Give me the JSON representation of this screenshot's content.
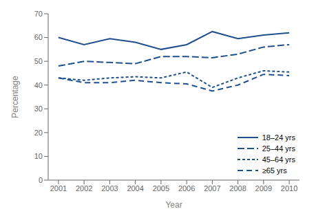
{
  "chart_data": {
    "type": "line",
    "xlabel": "Year",
    "ylabel": "Percentage",
    "x": [
      2001,
      2002,
      2003,
      2004,
      2005,
      2006,
      2007,
      2008,
      2009,
      2010
    ],
    "series": [
      {
        "name": "18–24 yrs",
        "color": "#1f4e8c",
        "line_style": "solid",
        "values": [
          60,
          57,
          59.5,
          58,
          55,
          57,
          62.5,
          59.5,
          61,
          62
        ]
      },
      {
        "name": "25–44 yrs",
        "color": "#1f4e8c",
        "line_style": "dashed",
        "values": [
          48,
          50,
          49.5,
          49,
          52,
          52,
          51.5,
          53,
          56,
          57
        ]
      },
      {
        "name": "45–64 yrs",
        "color": "#1f4e8c",
        "line_style": "dotted",
        "values": [
          43,
          42,
          43,
          43.5,
          43,
          45.5,
          39,
          43,
          46,
          45.5
        ]
      },
      {
        "name": "≥65 yrs",
        "color": "#1f4e8c",
        "line_style": "longdash",
        "values": [
          43,
          41,
          41,
          42,
          41,
          40.5,
          37.5,
          40,
          44.5,
          44
        ]
      }
    ],
    "xlim": [
      2000.6,
      2010.4
    ],
    "xticks": [
      2001,
      2002,
      2003,
      2004,
      2005,
      2006,
      2007,
      2008,
      2009,
      2010
    ],
    "ylim": [
      0,
      70
    ],
    "yticks": [
      0,
      10,
      20,
      30,
      40,
      50,
      60,
      70
    ],
    "grid": false,
    "legend": "lower right"
  }
}
